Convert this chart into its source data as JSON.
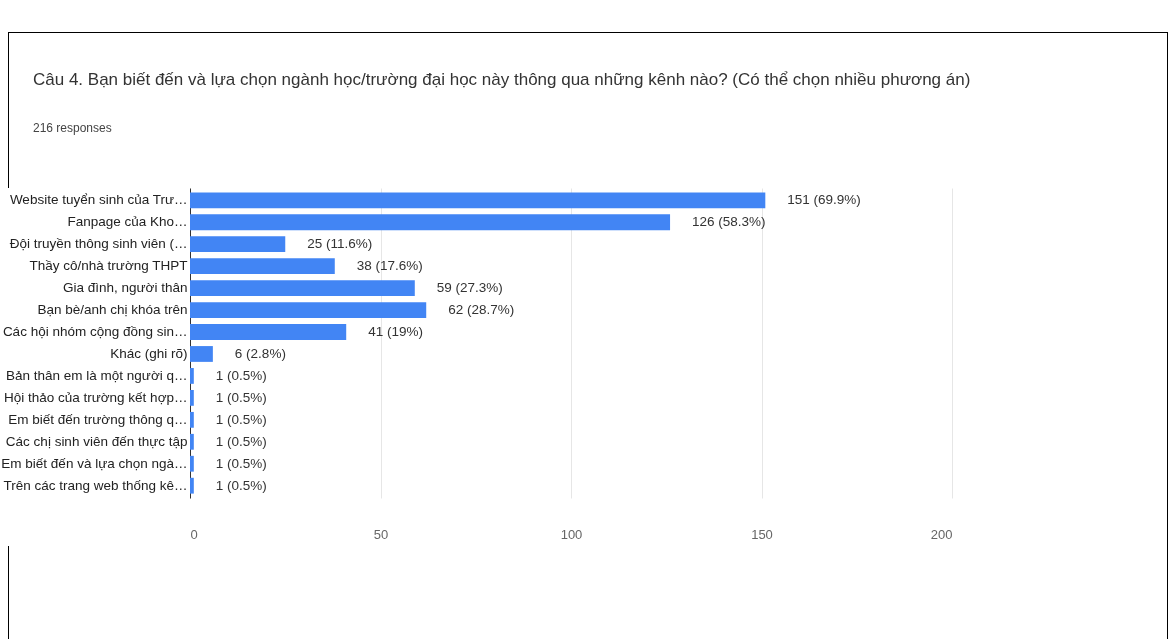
{
  "chart_data": {
    "type": "bar",
    "orientation": "horizontal",
    "title": "Câu 4. Bạn biết đến và lựa chọn ngành học/trường đại học này thông qua những kênh nào? (Có thể chọn nhiều phương án)",
    "subtitle": "216 responses",
    "categories": [
      "Website tuyển sinh của Trư…",
      "Fanpage của Kho…",
      "Đội truyền thông sinh viên (…",
      "Thầy cô/nhà trường THPT",
      "Gia đình, người thân",
      "Bạn bè/anh chị khóa trên",
      "Các hội nhóm cộng đồng sin…",
      "Khác (ghi rõ)",
      "Bản thân em là một người q…",
      "Hội thảo của trường kết hợp…",
      "Em biết đến trường thông q…",
      "Các chị sinh viên đến thực tập",
      "Em biết đến và lựa chọn ngà…",
      "Trên các trang web thống kê…"
    ],
    "values": [
      151,
      126,
      25,
      38,
      59,
      62,
      41,
      6,
      1,
      1,
      1,
      1,
      1,
      1
    ],
    "value_labels": [
      "151 (69.9%)",
      "126 (58.3%)",
      "25 (11.6%)",
      "38 (17.6%)",
      "59 (27.3%)",
      "62 (28.7%)",
      "41 (19%)",
      "6 (2.8%)",
      "1 (0.5%)",
      "1 (0.5%)",
      "1 (0.5%)",
      "1 (0.5%)",
      "1 (0.5%)",
      "1 (0.5%)"
    ],
    "color": "#4285f4",
    "xlim": [
      0,
      200
    ],
    "xticks": [
      0,
      50,
      100,
      150,
      200
    ],
    "grid": "x"
  }
}
